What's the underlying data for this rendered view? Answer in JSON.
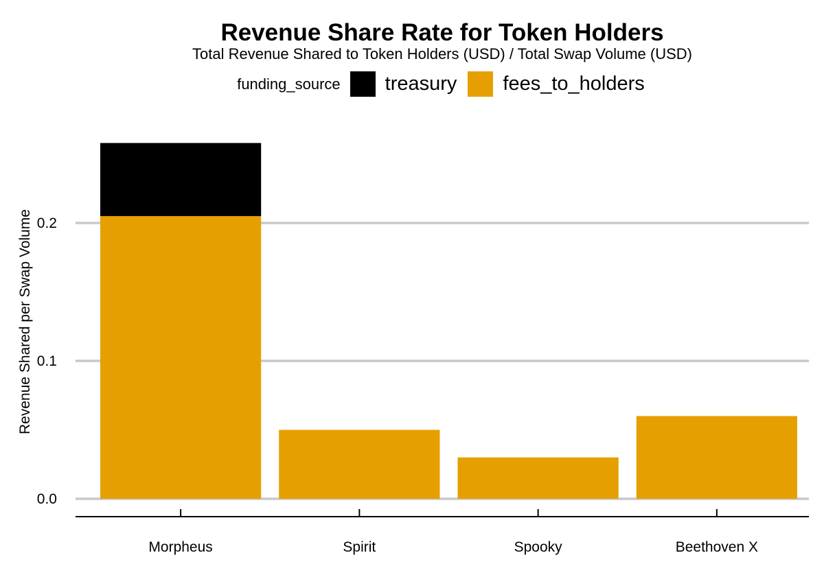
{
  "chart_data": {
    "type": "bar",
    "stacked": true,
    "title": "Revenue Share Rate for Token Holders",
    "subtitle": "Total Revenue Shared to Token Holders (USD) / Total Swap Volume (USD)",
    "ylabel": "Revenue Shared per Swap Volume",
    "xlabel": "",
    "categories": [
      "Morpheus",
      "Spirit",
      "Spooky",
      "Beethoven X"
    ],
    "legend": {
      "title": "funding_source",
      "placement": "top-center",
      "entries": [
        {
          "name": "treasury",
          "color": "#000000"
        },
        {
          "name": "fees_to_holders",
          "color": "#E69F00"
        }
      ]
    },
    "series": [
      {
        "name": "fees_to_holders",
        "color": "#E69F00",
        "values": [
          0.205,
          0.05,
          0.03,
          0.06
        ]
      },
      {
        "name": "treasury",
        "color": "#000000",
        "values": [
          0.053,
          0,
          0,
          0
        ]
      }
    ],
    "ylim": [
      0,
      0.26
    ],
    "yticks": [
      0.0,
      0.1,
      0.2
    ],
    "ytick_labels": [
      "0.0",
      "0.1",
      "0.2"
    ],
    "grid": "horizontal"
  }
}
